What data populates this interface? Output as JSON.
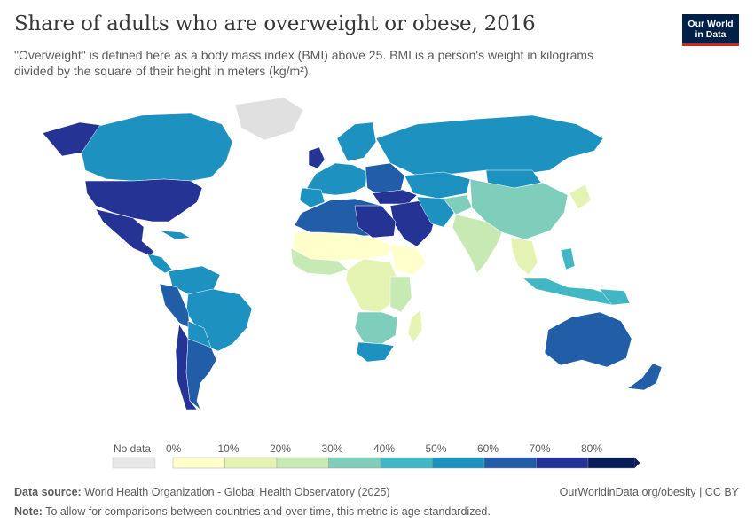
{
  "header": {
    "title": "Share of adults who are overweight or obese, 2016",
    "subtitle": "\"Overweight\" is defined here as a body mass index (BMI) above 25. BMI is a person's weight in kilograms divided by the square of their height in meters (kg/m²)."
  },
  "logo": {
    "line1": "Our World",
    "line2": "in Data"
  },
  "colors": {
    "bin0": "#ffffcc",
    "bin1": "#e4f3b2",
    "bin2": "#c7e9b4",
    "bin3": "#7fcdbb",
    "bin4": "#41b6c4",
    "bin5": "#1d91c0",
    "bin6": "#225ea8",
    "bin7": "#253494",
    "bin8": "#081d58",
    "ocean": "#ffffff",
    "nodata": "#e0e0e0"
  },
  "legend": {
    "no_data_label": "No data",
    "ticks": [
      "0%",
      "10%",
      "20%",
      "30%",
      "40%",
      "50%",
      "60%",
      "70%",
      "80%"
    ]
  },
  "footer": {
    "source_label": "Data source:",
    "source_text": "World Health Organization - Global Health Observatory (2025)",
    "url": "OurWorldinData.org/obesity | CC BY",
    "note_label": "Note:",
    "note_text": "To allow for comparisons between countries and over time, this metric is age-standardized."
  }
}
